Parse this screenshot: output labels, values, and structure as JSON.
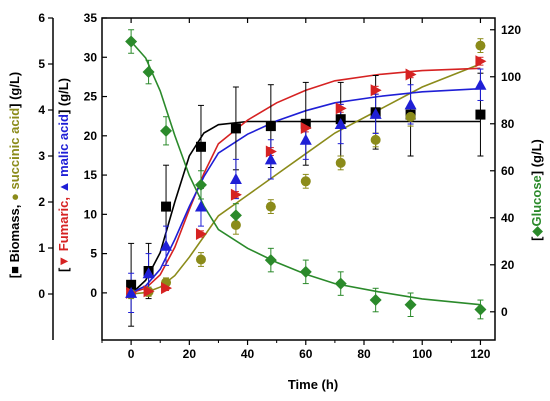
{
  "chart_data": {
    "type": "scatter",
    "xlabel": "Time (h)",
    "xlim": [
      -10,
      125
    ],
    "x_ticks": [
      0,
      20,
      40,
      60,
      80,
      100,
      120
    ],
    "axes": {
      "left_outer": {
        "ylim": [
          -1,
          6
        ],
        "ticks": [
          0,
          1,
          2,
          3,
          4,
          5,
          6
        ]
      },
      "left_inner": {
        "ylim": [
          -6,
          35
        ],
        "ticks": [
          0,
          5,
          10,
          15,
          20,
          25,
          30,
          35
        ]
      },
      "right": {
        "ylim": [
          -12,
          125
        ],
        "ticks": [
          0,
          20,
          40,
          60,
          80,
          100,
          120
        ]
      }
    },
    "axis_title_parts": {
      "outer": [
        "[",
        "■",
        " Biomass, ",
        "●",
        " succinic acid",
        "] (g/L)"
      ],
      "inner": [
        "[",
        "▼",
        " Fumaric, ",
        "▲",
        " malic acid",
        "] (g/L)"
      ],
      "right": [
        "[",
        "◆",
        "Glucose",
        "] (g/L)"
      ]
    },
    "colors": {
      "biomass": "#000000",
      "succinic": "#8b8b1a",
      "fumaric": "#d62222",
      "malic": "#1f1fd6",
      "glucose": "#2b8a2b"
    },
    "series": [
      {
        "key": "biomass",
        "axis": "left_outer",
        "marker": "square",
        "x": [
          0,
          6,
          12,
          24,
          36,
          48,
          60,
          72,
          84,
          96,
          120
        ],
        "y": [
          0.2,
          0.5,
          1.9,
          3.2,
          3.6,
          3.65,
          3.7,
          3.8,
          3.95,
          3.9,
          3.9
        ],
        "err": [
          0.9,
          0.6,
          0.9,
          0.9,
          0.9,
          0.9,
          0.9,
          0.8,
          0.8,
          0.9,
          0.9
        ],
        "fit": [
          0.0,
          0.3,
          0.9,
          2.0,
          3.0,
          3.5,
          3.68,
          3.75,
          3.75,
          3.75,
          3.75,
          3.75,
          3.75,
          3.75
        ]
      },
      {
        "key": "succinic",
        "axis": "left_outer",
        "marker": "circle",
        "x": [
          0,
          6,
          12,
          24,
          36,
          48,
          60,
          72,
          84,
          96,
          120
        ],
        "y": [
          0.0,
          0.05,
          0.25,
          0.75,
          1.5,
          1.9,
          2.45,
          2.85,
          3.35,
          3.85,
          5.4
        ],
        "err": [
          0.1,
          0.1,
          0.1,
          0.15,
          0.2,
          0.15,
          0.15,
          0.15,
          0.15,
          0.2,
          0.15
        ],
        "fit": [
          0.0,
          0.03,
          0.15,
          0.4,
          0.8,
          1.25,
          1.7,
          2.15,
          2.6,
          3.05,
          3.5,
          4.0,
          4.5,
          5.0
        ]
      },
      {
        "key": "fumaric",
        "axis": "left_inner",
        "marker": "tri-right",
        "x": [
          0,
          6,
          12,
          24,
          36,
          48,
          60,
          72,
          84,
          96,
          120
        ],
        "y": [
          0.0,
          0.2,
          0.6,
          7.5,
          12.5,
          18.0,
          21.0,
          23.5,
          25.8,
          27.8,
          29.5
        ],
        "err": [
          0.2,
          0.2,
          0.3,
          0.4,
          0.4,
          0.5,
          0.5,
          0.5,
          0.5,
          0.4,
          0.5
        ],
        "fit": [
          0.0,
          0.6,
          2.3,
          5.8,
          10.6,
          15.2,
          19.0,
          22.0,
          24.2,
          25.8,
          27.0,
          27.8,
          28.3,
          28.6
        ]
      },
      {
        "key": "malic",
        "axis": "left_inner",
        "marker": "triangle",
        "x": [
          0,
          6,
          12,
          24,
          36,
          48,
          60,
          72,
          84,
          96,
          120
        ],
        "y": [
          0.0,
          2.5,
          6.0,
          11.0,
          14.5,
          17.0,
          19.5,
          21.5,
          22.8,
          24.0,
          26.5
        ],
        "err": [
          2.5,
          2.5,
          2.5,
          2.5,
          2.5,
          2.5,
          2.5,
          2.5,
          2.5,
          2.5,
          2.0
        ],
        "fit": [
          0.0,
          0.9,
          3.0,
          6.8,
          11.0,
          14.8,
          17.8,
          20.2,
          21.9,
          23.2,
          24.2,
          25.0,
          25.6,
          26.0
        ]
      },
      {
        "key": "glucose",
        "axis": "right",
        "marker": "diamond",
        "x": [
          0,
          6,
          12,
          24,
          36,
          48,
          60,
          72,
          84,
          96,
          120
        ],
        "y": [
          115,
          102,
          77,
          54,
          41,
          22,
          17,
          12,
          5,
          3,
          1
        ],
        "err": [
          5,
          5,
          6,
          6,
          5,
          5,
          5,
          5,
          5,
          5,
          4
        ],
        "fit": [
          115.0,
          108.0,
          94.0,
          75.0,
          58.0,
          45.0,
          35.0,
          27.0,
          21.0,
          16.0,
          12.0,
          8.5,
          5.5,
          3.0
        ]
      }
    ],
    "fit_x": [
      0,
      5,
      10,
      15,
      20,
      25,
      30,
      40,
      50,
      60,
      70,
      85,
      100,
      120
    ]
  }
}
